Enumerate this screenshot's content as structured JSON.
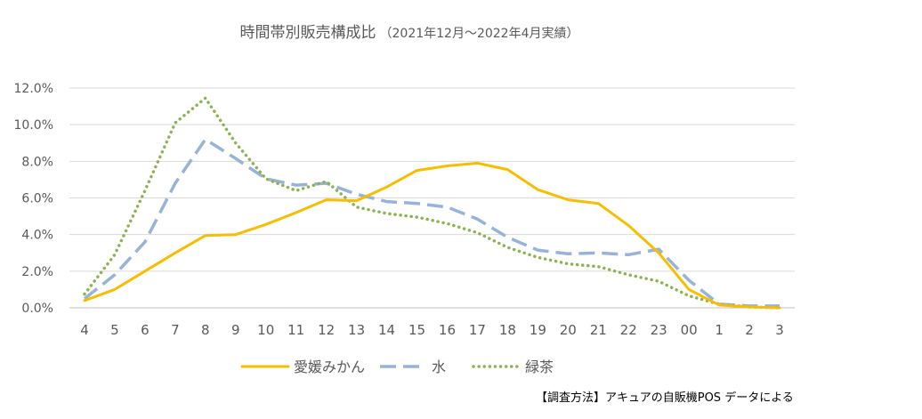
{
  "chart_data": {
    "type": "line",
    "title": "時間帯別販売構成比",
    "subtitle": "（2021年12月～2022年4月実績）",
    "categories": [
      "4",
      "5",
      "6",
      "7",
      "8",
      "9",
      "10",
      "11",
      "12",
      "13",
      "14",
      "15",
      "16",
      "17",
      "18",
      "19",
      "20",
      "21",
      "22",
      "23",
      "00",
      "1",
      "2",
      "3"
    ],
    "ylim": [
      0,
      12
    ],
    "yticks": [
      "0.0%",
      "2.0%",
      "4.0%",
      "6.0%",
      "8.0%",
      "10.0%",
      "12.0%"
    ],
    "grid": true,
    "legend_position": "bottom",
    "series": [
      {
        "name": "愛媛みかん",
        "color": "#F5BE00",
        "style": "solid",
        "values": [
          0.4,
          1.0,
          2.0,
          3.0,
          3.95,
          4.0,
          4.55,
          5.2,
          5.9,
          5.85,
          6.6,
          7.5,
          7.75,
          7.9,
          7.55,
          6.45,
          5.9,
          5.7,
          4.5,
          3.0,
          1.0,
          0.15,
          0.05,
          0.0
        ]
      },
      {
        "name": "水",
        "color": "#97B3D7",
        "style": "dashed",
        "values": [
          0.5,
          1.8,
          3.6,
          6.8,
          9.2,
          8.15,
          7.05,
          6.7,
          6.8,
          6.2,
          5.8,
          5.7,
          5.5,
          4.85,
          3.85,
          3.15,
          2.95,
          3.0,
          2.9,
          3.2,
          1.5,
          0.2,
          0.1,
          0.1
        ]
      },
      {
        "name": "緑茶",
        "color": "#8DB255",
        "style": "dotted",
        "values": [
          0.75,
          2.9,
          6.4,
          10.1,
          11.45,
          9.0,
          7.05,
          6.4,
          6.9,
          5.5,
          5.15,
          4.95,
          4.6,
          4.1,
          3.3,
          2.75,
          2.4,
          2.25,
          1.8,
          1.45,
          0.65,
          0.2,
          0.05,
          0.0
        ]
      }
    ]
  },
  "source_note": "【調査方法】アキュアの自販機POS データによる"
}
